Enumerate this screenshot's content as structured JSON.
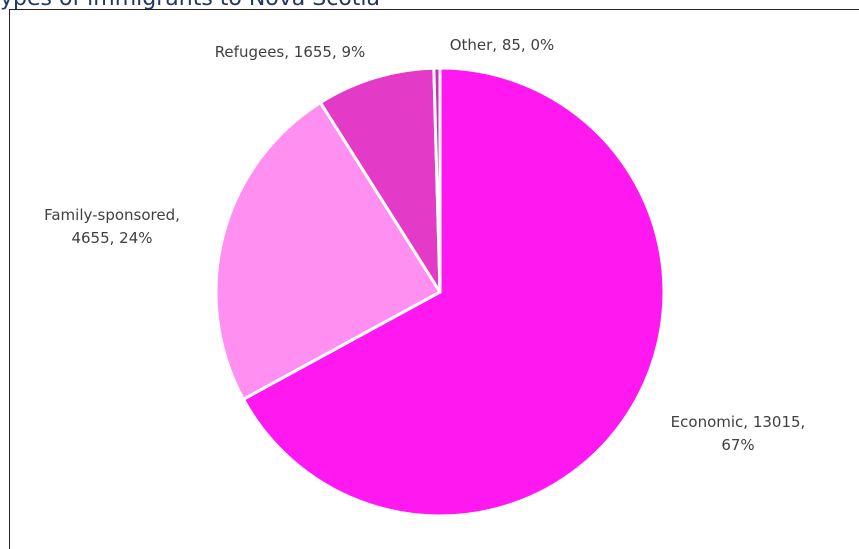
{
  "heading": "ypes of immigrants to Nova Scotia",
  "chart_data": {
    "type": "pie",
    "title": "",
    "start_angle_deg": 0,
    "direction": "clockwise",
    "slices": [
      {
        "name": "Economic",
        "value": 13015,
        "percent": "67%",
        "label_lines": [
          "Economic, 13015,",
          "67%"
        ],
        "color": "#ff19f0"
      },
      {
        "name": "Family-sponsored",
        "value": 4655,
        "percent": "24%",
        "label_lines": [
          "Family-sponsored,",
          "4655, 24%"
        ],
        "color": "#ff8ff1"
      },
      {
        "name": "Refugees",
        "value": 1655,
        "percent": "9%",
        "label_lines": [
          "Refugees, 1655, 9%"
        ],
        "color": "#e33ac8"
      },
      {
        "name": "Other",
        "value": 85,
        "percent": "0%",
        "label_lines": [
          "Other, 85, 0%"
        ],
        "color": "#cc2cb8"
      }
    ]
  }
}
